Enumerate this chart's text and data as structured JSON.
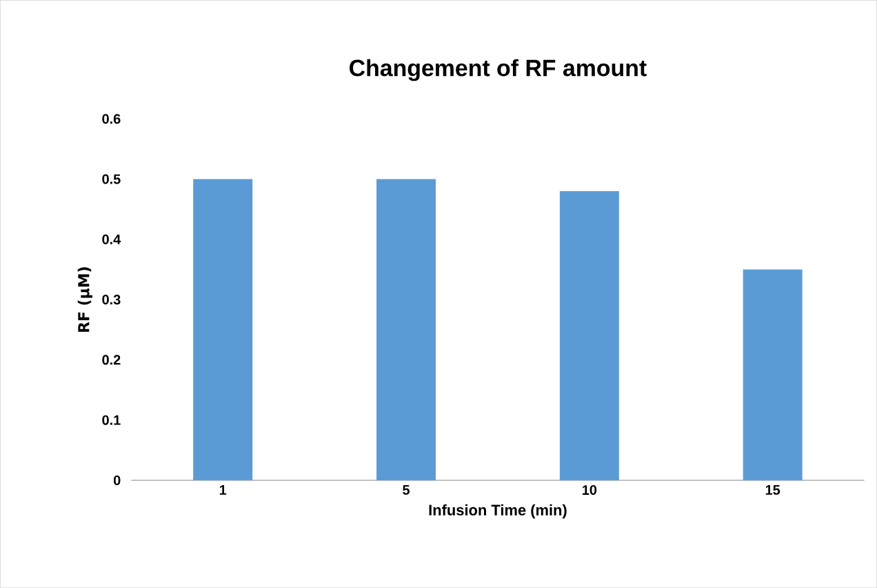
{
  "chart_data": {
    "type": "bar",
    "title": "Changement of RF amount",
    "xlabel": "Infusion Time (min)",
    "ylabel": "RF (μM)",
    "categories": [
      "1",
      "5",
      "10",
      "15"
    ],
    "values": [
      0.5,
      0.5,
      0.48,
      0.35
    ],
    "color": "#5b9bd5",
    "ylim": [
      0,
      0.6
    ],
    "yticks": [
      0,
      0.1,
      0.2,
      0.3,
      0.4,
      0.5,
      0.6
    ],
    "grid": false
  }
}
